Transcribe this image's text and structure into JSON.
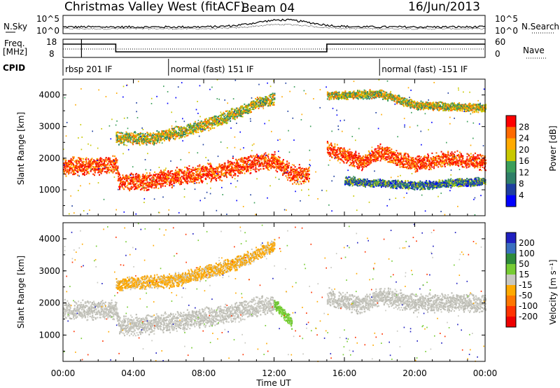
{
  "header": {
    "station": "Christmas Valley West (fitACF)",
    "beam": "Beam 04",
    "date": "16/Jun/2013"
  },
  "noise_panel": {
    "left_label": "N.Sky",
    "right_label": "N.Search",
    "left_ticks": [
      "10^5",
      "10^0"
    ],
    "right_ticks": [
      "10^5",
      "10^0"
    ]
  },
  "freq_panel": {
    "left_label_line1": "Freq.",
    "left_label_line2": "[MHz]",
    "right_label": "Nave",
    "left_ticks": [
      "18",
      "8"
    ],
    "right_ticks": [
      "60",
      "0"
    ]
  },
  "cpid": {
    "label": "CPID",
    "segments": [
      {
        "label": "rbsp 201 IF",
        "start_hour": 0
      },
      {
        "label": "normal (fast) 151 IF",
        "start_hour": 6
      },
      {
        "label": "normal (fast) -151 IF",
        "start_hour": 18
      }
    ]
  },
  "power_panel": {
    "ylabel": "Slant Range [km]",
    "colorbar_label": "Power [dB]",
    "colorbar_ticks": [
      "28",
      "24",
      "20",
      "16",
      "12",
      "8",
      "4"
    ],
    "colorbar_colors": [
      "#ff0000",
      "#ff6a00",
      "#ffaa00",
      "#c8c800",
      "#3c9f5a",
      "#2f7f68",
      "#1f3fa0",
      "#0000ff"
    ]
  },
  "velocity_panel": {
    "ylabel": "Slant Range [km]",
    "colorbar_label": "Velocity [m s⁻¹]",
    "colorbar_ticks": [
      "200",
      "100",
      "50",
      "15",
      "-15",
      "-50",
      "-100",
      "-200"
    ],
    "colorbar_colors": [
      "#2020c0",
      "#3a6fbf",
      "#2e8b3a",
      "#77cc33",
      "#c8c8c0",
      "#ffaa00",
      "#ff7700",
      "#ff3300",
      "#ee0000"
    ]
  },
  "y_ticks": [
    "4000",
    "3000",
    "2000",
    "1000"
  ],
  "x_ticks": [
    "00:00",
    "04:00",
    "08:00",
    "12:00",
    "16:00",
    "20:00",
    "00:00"
  ],
  "xlabel": "Time UT",
  "chart_data": {
    "type": "heatmap",
    "x_unit_hours": [
      0,
      24
    ],
    "y_range_km": [
      180,
      4500
    ],
    "y_tick_values_km": [
      4000,
      3000,
      2000,
      1000
    ],
    "x_tick_values_hours": [
      0,
      4,
      8,
      12,
      16,
      20,
      24
    ],
    "freq_mhz": [
      {
        "start": 0,
        "end": 3,
        "value": 16
      },
      {
        "start": 3,
        "end": 15,
        "value": 10.5
      },
      {
        "start": 15,
        "end": 24,
        "value": 16
      }
    ],
    "power_bands": [
      {
        "points": [
          [
            0,
            1750
          ],
          [
            3,
            1820
          ],
          [
            3.2,
            1250
          ],
          [
            5,
            1300
          ],
          [
            7,
            1480
          ],
          [
            9,
            1620
          ],
          [
            11,
            1900
          ],
          [
            12,
            1950
          ],
          [
            13,
            1500
          ],
          [
            14,
            1500
          ]
        ],
        "width": 320,
        "level": "high"
      },
      {
        "points": [
          [
            3,
            2650
          ],
          [
            5,
            2650
          ],
          [
            7,
            2900
          ],
          [
            9,
            3250
          ],
          [
            11,
            3750
          ],
          [
            12,
            3900
          ]
        ],
        "width": 220,
        "level": "mid"
      },
      {
        "points": [
          [
            15,
            2300
          ],
          [
            17,
            1900
          ],
          [
            18,
            2200
          ],
          [
            20,
            1850
          ],
          [
            22,
            2000
          ],
          [
            24,
            1900
          ]
        ],
        "width": 280,
        "level": "high"
      },
      {
        "points": [
          [
            15,
            4000
          ],
          [
            18,
            4050
          ],
          [
            20,
            3700
          ],
          [
            24,
            3600
          ]
        ],
        "width": 150,
        "level": "mid"
      },
      {
        "points": [
          [
            16,
            1300
          ],
          [
            20,
            1150
          ],
          [
            24,
            1300
          ]
        ],
        "width": 150,
        "level": "low"
      }
    ],
    "velocity_bands": [
      {
        "points": [
          [
            0,
            1800
          ],
          [
            3,
            1820
          ],
          [
            3.2,
            1300
          ],
          [
            5,
            1350
          ],
          [
            7,
            1500
          ],
          [
            9,
            1650
          ],
          [
            11,
            1900
          ],
          [
            12,
            2000
          ]
        ],
        "width": 340,
        "class": "-15..15"
      },
      {
        "points": [
          [
            3,
            2600
          ],
          [
            6,
            2700
          ],
          [
            8,
            2950
          ],
          [
            10,
            3300
          ],
          [
            12,
            3800
          ]
        ],
        "width": 240,
        "class": "-50..-15"
      },
      {
        "points": [
          [
            15,
            2200
          ],
          [
            17,
            1950
          ],
          [
            18,
            2250
          ],
          [
            20,
            2000
          ],
          [
            22,
            2050
          ],
          [
            24,
            2000
          ]
        ],
        "width": 320,
        "class": "-15..15"
      },
      {
        "points": [
          [
            12,
            2000
          ],
          [
            13,
            1400
          ]
        ],
        "width": 200,
        "class": "15..50"
      }
    ]
  }
}
